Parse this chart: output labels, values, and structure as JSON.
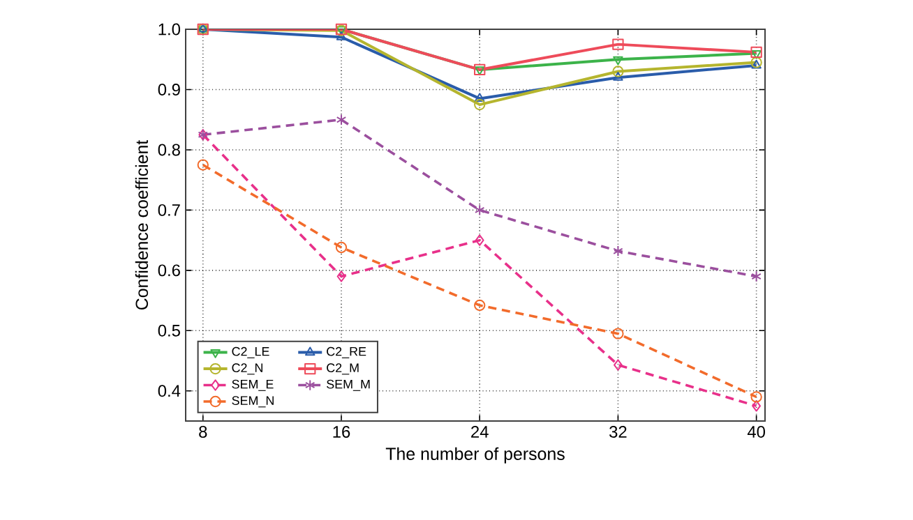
{
  "chart_data": {
    "type": "line",
    "xlabel": "The number of persons",
    "ylabel": "Confidence coefficient",
    "x": [
      8,
      16,
      24,
      32,
      40
    ],
    "xlim": [
      7,
      40.5
    ],
    "xticks": [
      8,
      16,
      24,
      32,
      40
    ],
    "ylim": [
      0.35,
      1.0
    ],
    "yticks": [
      0.4,
      0.5,
      0.6,
      0.7,
      0.8,
      0.9,
      {
        "value": 1.0,
        "label": "1.0"
      }
    ],
    "grid": true,
    "legend": "bottom left",
    "series": [
      {
        "name": "C2_LE",
        "color": "#3cb34a",
        "marker": "triangle down",
        "line_style": "solid",
        "values": [
          1.0,
          1.0,
          0.933,
          0.95,
          0.96
        ]
      },
      {
        "name": "C2_RE",
        "color": "#2a5caa",
        "marker": "triangle",
        "line_style": "solid",
        "values": [
          1.0,
          0.987,
          0.885,
          0.92,
          0.94
        ]
      },
      {
        "name": "C2_N",
        "color": "#b5b52e",
        "marker": "circle",
        "line_style": "solid",
        "values": [
          1.0,
          0.998,
          0.875,
          0.93,
          0.945
        ]
      },
      {
        "name": "C2_M",
        "color": "#ee4b5a",
        "marker": "square",
        "line_style": "solid",
        "values": [
          1.0,
          1.0,
          0.933,
          0.975,
          0.962
        ]
      },
      {
        "name": "SEM_E",
        "color": "#e8308a",
        "marker": "diamond",
        "line_style": "dashed",
        "values": [
          0.825,
          0.59,
          0.65,
          0.443,
          0.375
        ]
      },
      {
        "name": "SEM_M",
        "color": "#9b4f9e",
        "marker": "cross",
        "line_style": "dashed",
        "values": [
          0.825,
          0.85,
          0.7,
          0.632,
          0.59
        ]
      },
      {
        "name": "SEM_N",
        "color": "#f26b2b",
        "marker": "circle",
        "line_style": "dashed",
        "values": [
          0.775,
          0.638,
          0.542,
          0.495,
          0.39
        ]
      }
    ]
  }
}
